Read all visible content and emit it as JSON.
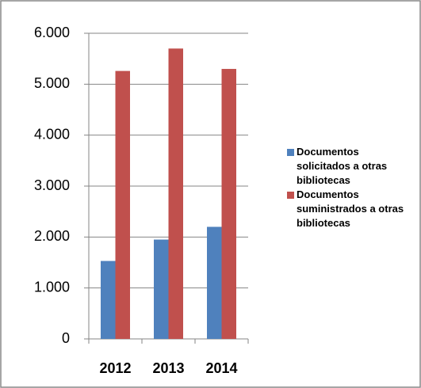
{
  "chart_data": {
    "type": "bar",
    "categories": [
      "2012",
      "2013",
      "2014"
    ],
    "series": [
      {
        "name": "Documentos solicitados a otras bibliotecas",
        "color": "#4f81bd",
        "values": [
          1530,
          1950,
          2200
        ]
      },
      {
        "name": "Documentos suministrados a otras bibliotecas",
        "color": "#c0504d",
        "values": [
          5260,
          5700,
          5300
        ]
      }
    ],
    "ylim": [
      0,
      6000
    ],
    "yticks": [
      0,
      {
        "value": 1000,
        "label": "1.000"
      },
      {
        "value": 2000,
        "label": "2.000"
      },
      {
        "value": 3000,
        "label": "3.000"
      },
      {
        "value": 4000,
        "label": "4.000"
      },
      {
        "value": 5000,
        "label": "5.000"
      },
      {
        "value": 6000,
        "label": "6.000"
      }
    ],
    "grid": true,
    "legend": "right"
  }
}
